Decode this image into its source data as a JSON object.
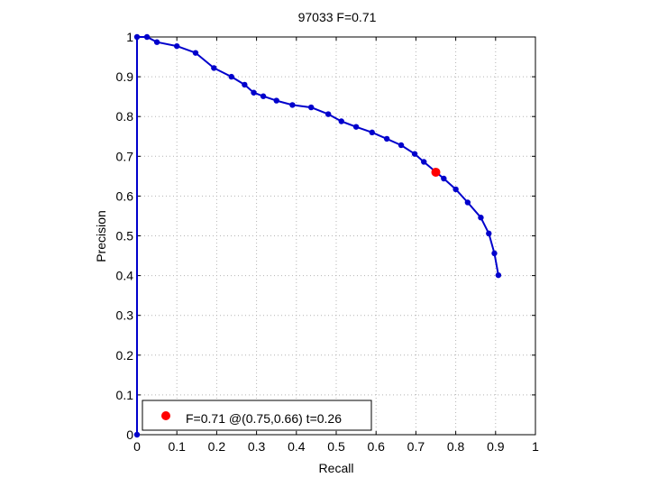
{
  "chart_data": {
    "type": "line",
    "title": "97033 F=0.71",
    "xlabel": "Recall",
    "ylabel": "Precision",
    "xlim": [
      0,
      1
    ],
    "ylim": [
      0,
      1
    ],
    "xticks": [
      "0",
      "0.1",
      "0.2",
      "0.3",
      "0.4",
      "0.5",
      "0.6",
      "0.7",
      "0.8",
      "0.9",
      "1"
    ],
    "yticks": [
      "0",
      "0.1",
      "0.2",
      "0.3",
      "0.4",
      "0.5",
      "0.6",
      "0.7",
      "0.8",
      "0.9",
      "1"
    ],
    "grid": true,
    "legend_placement": "bottom-left",
    "colors": {
      "curve": "#0000cc",
      "best_point": "#ff0000",
      "grid": "#b4b4b4"
    },
    "series": [
      {
        "values": [
          [
            0,
            0
          ],
          [
            0,
            1
          ],
          [
            0.025,
            1
          ],
          [
            0.05,
            0.987
          ],
          [
            0.1,
            0.977
          ],
          [
            0.147,
            0.96
          ],
          [
            0.193,
            0.922
          ],
          [
            0.237,
            0.9
          ],
          [
            0.27,
            0.88
          ],
          [
            0.293,
            0.86
          ],
          [
            0.317,
            0.851
          ],
          [
            0.35,
            0.84
          ],
          [
            0.39,
            0.829
          ],
          [
            0.437,
            0.823
          ],
          [
            0.48,
            0.806
          ],
          [
            0.513,
            0.788
          ],
          [
            0.55,
            0.774
          ],
          [
            0.59,
            0.76
          ],
          [
            0.627,
            0.744
          ],
          [
            0.663,
            0.728
          ],
          [
            0.697,
            0.706
          ],
          [
            0.72,
            0.686
          ],
          [
            0.77,
            0.644
          ],
          [
            0.8,
            0.617
          ],
          [
            0.83,
            0.584
          ],
          [
            0.863,
            0.546
          ],
          [
            0.883,
            0.506
          ],
          [
            0.897,
            0.456
          ],
          [
            0.907,
            0.401
          ]
        ]
      }
    ],
    "best_point": {
      "recall": 0.75,
      "precision": 0.66
    },
    "legend": [
      "F=0.71 @(0.75,0.66) t=0.26"
    ]
  }
}
